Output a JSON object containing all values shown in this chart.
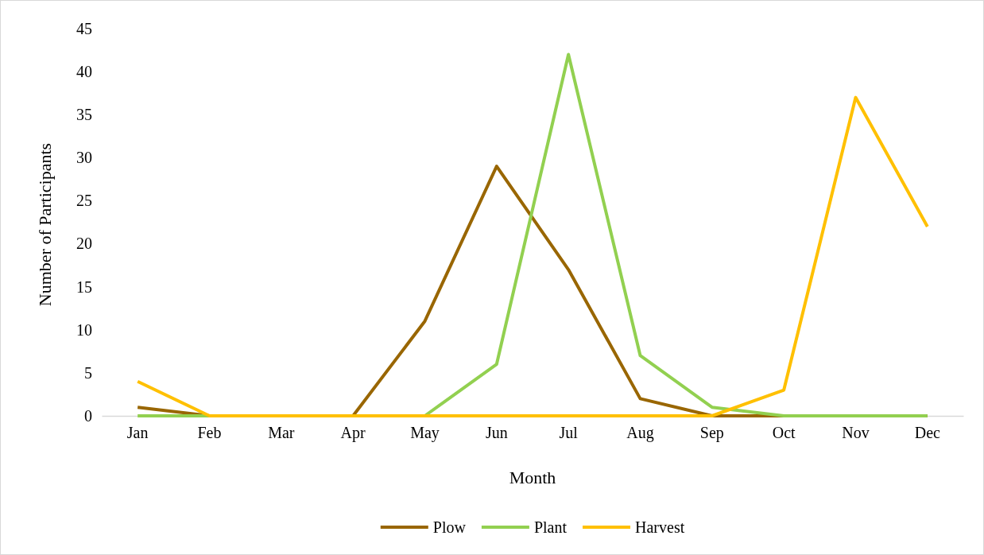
{
  "chart_data": {
    "type": "line",
    "xlabel": "Month",
    "ylabel": "Number of Participants",
    "categories": [
      "Jan",
      "Feb",
      "Mar",
      "Apr",
      "May",
      "Jun",
      "Jul",
      "Aug",
      "Sep",
      "Oct",
      "Nov",
      "Dec"
    ],
    "series": [
      {
        "name": "Plow",
        "color": "#996600",
        "values": [
          1,
          0,
          0,
          0,
          11,
          29,
          17,
          2,
          0,
          0,
          0,
          0
        ]
      },
      {
        "name": "Plant",
        "color": "#92d050",
        "values": [
          0,
          0,
          0,
          0,
          0,
          6,
          42,
          7,
          1,
          0,
          0,
          0
        ]
      },
      {
        "name": "Harvest",
        "color": "#ffc000",
        "values": [
          4,
          0,
          0,
          0,
          0,
          0,
          0,
          0,
          0,
          3,
          37,
          22
        ]
      }
    ],
    "ylim": [
      0,
      45
    ],
    "yticks": [
      0,
      5,
      10,
      15,
      20,
      25,
      30,
      35,
      40,
      45
    ],
    "grid": false,
    "legend": "bottom",
    "marker": "none",
    "line_style": "solid"
  }
}
